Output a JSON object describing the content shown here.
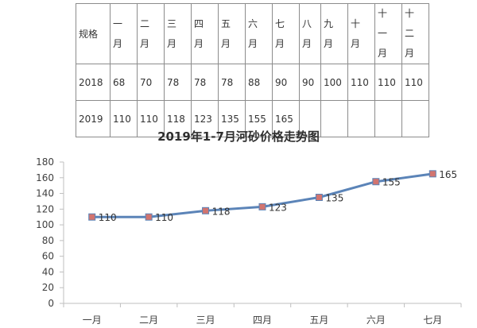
{
  "table": {
    "header": [
      "规格",
      "一月",
      "二月",
      "三月",
      "四月",
      "五月",
      "六月",
      "七月",
      "八月",
      "九月",
      "十月",
      "十一月",
      "十二月"
    ],
    "rows": [
      {
        "year": "2018",
        "values": [
          "68",
          "70",
          "78",
          "78",
          "78",
          "88",
          "90",
          "90",
          "100",
          "110",
          "110",
          "110"
        ]
      },
      {
        "year": "2019",
        "values": [
          "110",
          "110",
          "118",
          "123",
          "135",
          "155",
          "165",
          "",
          "",
          "",
          "",
          ""
        ]
      }
    ]
  },
  "chart_data": {
    "type": "line",
    "title": "2019年1-7月河砂价格走势图",
    "categories": [
      "一月",
      "二月",
      "三月",
      "四月",
      "五月",
      "六月",
      "七月"
    ],
    "values": [
      110,
      110,
      118,
      123,
      135,
      155,
      165
    ],
    "xlabel": "",
    "ylabel": "",
    "ylim": [
      0,
      180
    ],
    "yticks": [
      "0",
      "20",
      "40",
      "60",
      "80",
      "100",
      "120",
      "140",
      "160",
      "180"
    ],
    "grid": false,
    "legend": "none",
    "data_labels": true,
    "colors": {
      "line": "#5b84b8",
      "marker": "#d2746f",
      "marker_edge": "#5b84b8",
      "axis": "#bfbfbf"
    }
  }
}
